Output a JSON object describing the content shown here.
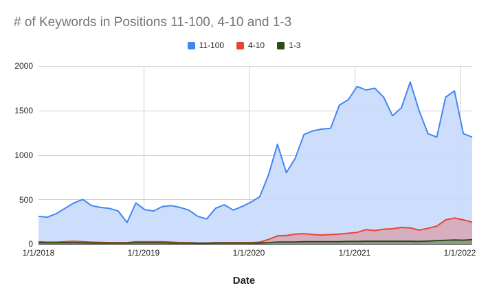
{
  "chart": {
    "title": "# of Keywords in Positions 11-100, 4-10 and 1-3",
    "xlabel": "Date",
    "legend": [
      {
        "label": "11-100",
        "color": "#4285f4"
      },
      {
        "label": "4-10",
        "color": "#ea4335"
      },
      {
        "label": "1-3",
        "color": "#274e13"
      }
    ],
    "yticks": [
      "2000",
      "1500",
      "1000",
      "500",
      "0"
    ],
    "xticks": [
      "1/1/2018",
      "1/1/2019",
      "1/1/2020",
      "1/1/2021",
      "1/1/2022"
    ]
  },
  "chart_data": {
    "type": "area",
    "title": "# of Keywords in Positions 11-100, 4-10 and 1-3",
    "xlabel": "Date",
    "ylabel": "",
    "ylim": [
      0,
      2000
    ],
    "xlim": [
      "2018-01-01",
      "2022-02-15"
    ],
    "grid": true,
    "legend_position": "top",
    "x_tick_labels": [
      "1/1/2018",
      "1/1/2019",
      "1/1/2020",
      "1/1/2021",
      "1/1/2022"
    ],
    "y_tick_labels": [
      "0",
      "500",
      "1000",
      "1500",
      "2000"
    ],
    "x": [
      "2018-01",
      "2018-02",
      "2018-03",
      "2018-04",
      "2018-05",
      "2018-06",
      "2018-07",
      "2018-08",
      "2018-09",
      "2018-10",
      "2018-11",
      "2018-12",
      "2019-01",
      "2019-02",
      "2019-03",
      "2019-04",
      "2019-05",
      "2019-06",
      "2019-07",
      "2019-08",
      "2019-09",
      "2019-10",
      "2019-11",
      "2019-12",
      "2020-01",
      "2020-02",
      "2020-03",
      "2020-04",
      "2020-05",
      "2020-06",
      "2020-07",
      "2020-08",
      "2020-09",
      "2020-10",
      "2020-11",
      "2020-12",
      "2021-01",
      "2021-02",
      "2021-03",
      "2021-04",
      "2021-05",
      "2021-06",
      "2021-07",
      "2021-08",
      "2021-09",
      "2021-10",
      "2021-11",
      "2021-12",
      "2022-01",
      "2022-02"
    ],
    "series": [
      {
        "name": "11-100",
        "color": "#4285f4",
        "values": [
          310,
          300,
          340,
          400,
          460,
          500,
          430,
          410,
          400,
          370,
          240,
          460,
          385,
          370,
          420,
          430,
          410,
          380,
          310,
          280,
          400,
          440,
          380,
          420,
          470,
          530,
          780,
          1120,
          800,
          960,
          1230,
          1270,
          1290,
          1300,
          1560,
          1620,
          1770,
          1730,
          1750,
          1650,
          1440,
          1530,
          1820,
          1500,
          1240,
          1200,
          1650,
          1720,
          1240,
          1200
        ]
      },
      {
        "name": "4-10",
        "color": "#ea4335",
        "values": [
          25,
          20,
          20,
          25,
          30,
          25,
          20,
          18,
          15,
          15,
          15,
          25,
          25,
          25,
          25,
          20,
          15,
          15,
          10,
          10,
          15,
          15,
          15,
          15,
          15,
          20,
          50,
          90,
          95,
          110,
          115,
          105,
          100,
          105,
          110,
          120,
          130,
          160,
          150,
          165,
          170,
          185,
          180,
          155,
          175,
          200,
          270,
          290,
          270,
          245
        ]
      },
      {
        "name": "1-3",
        "color": "#274e13",
        "values": [
          12,
          12,
          12,
          12,
          12,
          12,
          10,
          10,
          10,
          10,
          10,
          12,
          12,
          12,
          12,
          10,
          10,
          10,
          8,
          8,
          10,
          10,
          10,
          10,
          10,
          10,
          15,
          20,
          22,
          22,
          25,
          25,
          25,
          25,
          25,
          28,
          28,
          30,
          30,
          30,
          30,
          30,
          30,
          28,
          32,
          38,
          40,
          45,
          42,
          48
        ]
      }
    ]
  }
}
